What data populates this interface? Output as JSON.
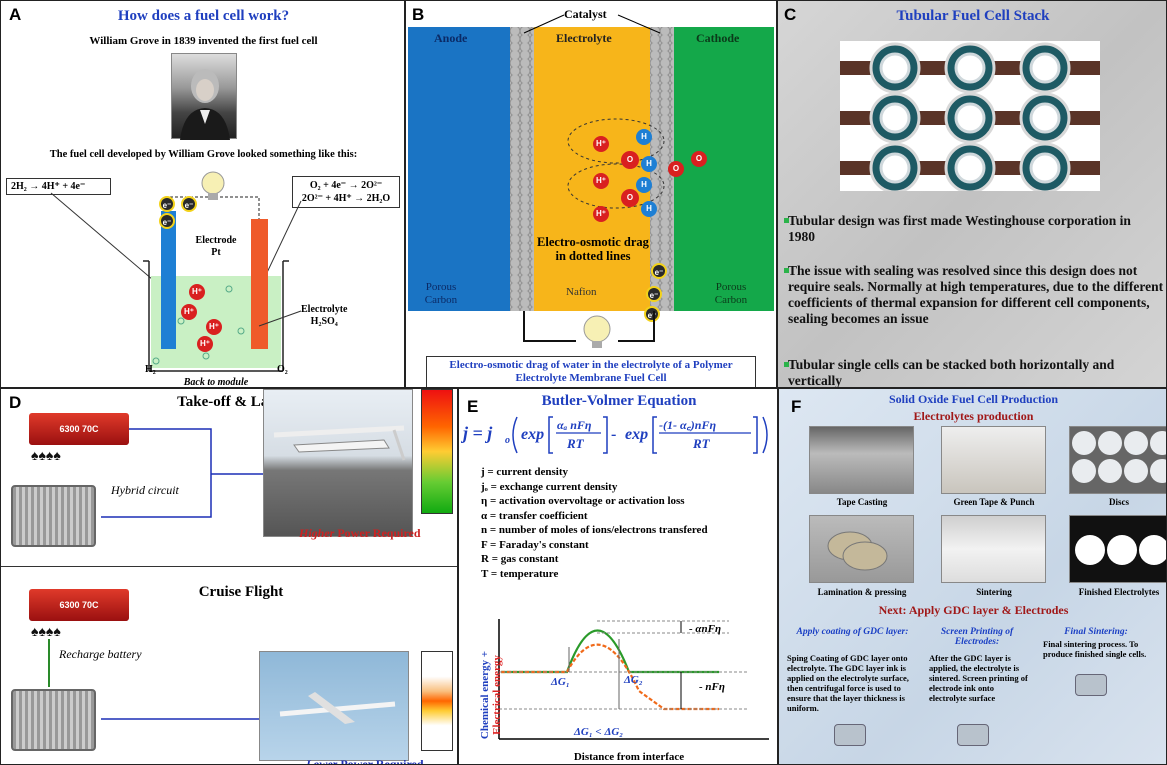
{
  "labels": {
    "a": "A",
    "b": "B",
    "c": "C",
    "d": "D",
    "e": "E",
    "f": "F"
  },
  "panelA": {
    "title": "How does a fuel cell work?",
    "subtitle": "William Grove in 1839 invented the first fuel cell",
    "caption": "The fuel cell developed by William Grove looked something like this:",
    "left_eq": "2H₂ → 4H⁺ + 4e⁻",
    "right_eq1": "O₂ + 4e⁻ → 2O²⁻",
    "right_eq2": "2O²⁻ + 4H⁺ → 2H₂O",
    "electrode": "Electrode",
    "electrode2": "Pt",
    "electrolyte": "Electrolyte",
    "electrolyte2": "H₂SO₄",
    "h2": "H₂",
    "o2": "O₂",
    "back": "Back to module",
    "ion": "H⁺",
    "electron": "e⁻"
  },
  "panelB": {
    "catalyst": "Catalyst",
    "anode": "Anode",
    "electrolyte": "Electrolyte",
    "cathode": "Cathode",
    "drag": "Electro-osmotic drag in dotted lines",
    "porous_l": "Porous Carbon",
    "nafion": "Nafion",
    "porous_r": "Porous Carbon",
    "caption": "Electro-osmotic drag of water in the electrolyte of a Polymer Electrolyte Membrane Fuel Cell",
    "h_ion": "H⁺",
    "h": "H",
    "o": "O",
    "electron": "e⁻"
  },
  "panelC": {
    "title": "Tubular Fuel Cell Stack",
    "bullets": [
      "Tubular design was first made Westinghouse corporation in 1980",
      "The issue with sealing was resolved since this design does not require seals. Normally at high temperatures, due to the different coefficients of thermal expansion for different cell components, sealing becomes an issue",
      "Tubular single cells can be stacked both horizontally and vertically"
    ]
  },
  "panelD": {
    "top_title": "Take-off & Landing",
    "hybrid": "Hybrid circuit",
    "higher_em": "Higher",
    "higher_rest": " Power Required",
    "bottom_title": "Cruise Flight",
    "recharge": "Recharge battery",
    "lower_em": "Lower",
    "lower_rest": " Power Required",
    "battery_label": "6300 70C",
    "colors": {
      "line": "#1c2fb5",
      "green": "#2a8a2a"
    }
  },
  "panelE": {
    "title": "Butler-Volmer Equation",
    "symbols": [
      "j  = current density",
      "jₒ = exchange current density",
      "η = activation overvoltage or activation loss",
      "α = transfer coefficient",
      "n  = number of moles of ions/electrons transfered",
      "F  = Faraday's constant",
      "R  = gas constant",
      "T  = temperature"
    ],
    "y_label_blue": "Chemical energy +",
    "y_label_red": "Electrical energy",
    "x_label": "Distance from interface",
    "dg1": "ΔG₁",
    "dg2": "ΔG₂",
    "cmp": "ΔG₁ < ΔG₂",
    "a_nf": "- αnFη",
    "nf": "- nFη"
  },
  "panelF": {
    "title": "Solid Oxide Fuel Cell Production",
    "subtitle": "Electrolytes production",
    "photos": [
      "Tape Casting",
      "Green Tape & Punch",
      "Discs",
      "Lamination & pressing",
      "Sintering",
      "Finished Electrolytes"
    ],
    "next": "Next: Apply GDC layer & Electrodes",
    "steps": [
      {
        "title": "Apply coating of GDC layer:",
        "body": "Sping Coating of GDC layer onto electrolyte. The GDC layer ink is applied on the electrolyte surface, then centrifugal force is used to ensure that the layer thickness is uniform."
      },
      {
        "title": "Screen Printing of Electrodes:",
        "body": "After the GDC layer is applied, the electrolyte is sintered. Screen printing of electrode ink onto electrolyte surface"
      },
      {
        "title": "Final Sintering:",
        "body": "Final sintering process. To produce finished single cells."
      }
    ]
  }
}
